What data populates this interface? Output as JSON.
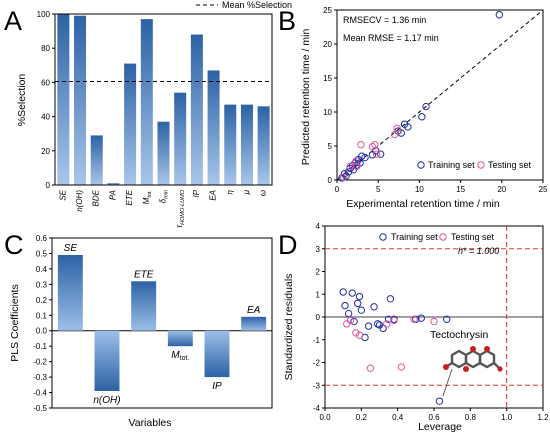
{
  "figure": {
    "panels": {
      "A": {
        "letter": "A",
        "legend": "Mean %Selection"
      },
      "B": {
        "letter": "B",
        "stat1": "RMSECV = 1.36 min",
        "stat2": "Mean RMSE = 1.17 min",
        "legend_train": "Training set",
        "legend_test": "Testing set"
      },
      "C": {
        "letter": "C"
      },
      "D": {
        "letter": "D",
        "hstar": "h* = 1.000",
        "legend_train": "Training set",
        "legend_test": "Testing set",
        "molecule_label": "Tectochrysin"
      }
    }
  },
  "colors": {
    "bar_top": "#2c62a4",
    "bar_bottom": "#a8c6ea",
    "training_marker": "#1f2fa0",
    "testing_marker": "#e0559a",
    "red_dashed": "#e03a2e"
  },
  "chart_data": [
    {
      "panel": "A",
      "type": "bar",
      "ylabel": "%Selection",
      "ylim": [
        0,
        100
      ],
      "yticks": [
        0,
        20,
        40,
        60,
        80,
        100
      ],
      "categories": [
        "SE",
        "n(OH)",
        "BDE",
        "PA",
        "ETE",
        "M_tot.",
        "δ_min",
        "τ_HOMO-LUMO",
        "IP",
        "EA",
        "η",
        "μ",
        "ω"
      ],
      "values": [
        100,
        99,
        29,
        1,
        71,
        97,
        37,
        54,
        88,
        67,
        47,
        47,
        46
      ],
      "reference_line": {
        "name": "Mean %Selection",
        "value": 60.5,
        "style": "dashed"
      },
      "grid": false
    },
    {
      "panel": "B",
      "type": "scatter",
      "xlabel": "Experimental retention time / min",
      "ylabel": "Predicted retention time / min",
      "xlim": [
        0,
        25
      ],
      "ylim": [
        0,
        25
      ],
      "xticks": [
        0,
        5,
        10,
        15,
        20,
        25
      ],
      "yticks": [
        0,
        5,
        10,
        15,
        20,
        25
      ],
      "identity_line": true,
      "series": [
        {
          "name": "Training set",
          "points": [
            [
              0.6,
              0.3
            ],
            [
              0.9,
              0.9
            ],
            [
              1.1,
              0.6
            ],
            [
              1.4,
              1.2
            ],
            [
              1.6,
              1.7
            ],
            [
              1.9,
              2.1
            ],
            [
              2.0,
              1.5
            ],
            [
              2.2,
              2.5
            ],
            [
              2.4,
              2.2
            ],
            [
              2.6,
              3.0
            ],
            [
              2.8,
              2.5
            ],
            [
              3.0,
              3.5
            ],
            [
              3.4,
              3.3
            ],
            [
              4.3,
              3.7
            ],
            [
              4.7,
              4.3
            ],
            [
              5.3,
              3.8
            ],
            [
              7.4,
              7.2
            ],
            [
              7.8,
              6.9
            ],
            [
              8.2,
              8.2
            ],
            [
              8.6,
              7.8
            ],
            [
              10.3,
              9.3
            ],
            [
              10.8,
              10.8
            ],
            [
              19.7,
              24.3
            ]
          ]
        },
        {
          "name": "Testing set",
          "points": [
            [
              0.8,
              0.4
            ],
            [
              1.6,
              2.0
            ],
            [
              2.3,
              2.8
            ],
            [
              2.4,
              2.0
            ],
            [
              2.9,
              5.2
            ],
            [
              4.3,
              4.9
            ],
            [
              4.6,
              5.2
            ],
            [
              4.8,
              3.8
            ],
            [
              7.0,
              6.7
            ],
            [
              7.3,
              7.6
            ]
          ]
        }
      ],
      "grid": false
    },
    {
      "panel": "C",
      "type": "bar",
      "xlabel": "Variables",
      "ylabel": "PLS Coefficients",
      "ylim": [
        -0.5,
        0.6
      ],
      "yticks": [
        -0.5,
        -0.4,
        -0.3,
        -0.2,
        -0.1,
        0.0,
        0.1,
        0.2,
        0.3,
        0.4,
        0.5,
        0.6
      ],
      "categories": [
        "SE",
        "n(OH)",
        "ETE",
        "M_tot.",
        "IP",
        "EA"
      ],
      "values": [
        0.49,
        -0.39,
        0.32,
        -0.1,
        -0.3,
        0.09
      ],
      "grid": false
    },
    {
      "panel": "D",
      "type": "scatter",
      "xlabel": "Leverage",
      "ylabel": "Standardized residuals",
      "xlim": [
        0,
        1.2
      ],
      "ylim": [
        -4,
        4
      ],
      "xticks": [
        0.0,
        0.2,
        0.4,
        0.6,
        0.8,
        1.0,
        1.2
      ],
      "yticks": [
        -4,
        -3,
        -2,
        -1,
        0,
        1,
        2,
        3,
        4
      ],
      "reference_lines": {
        "y": [
          3,
          -3
        ],
        "x": [
          1.0
        ]
      },
      "series": [
        {
          "name": "Training set",
          "points": [
            [
              0.1,
              1.1
            ],
            [
              0.11,
              0.5
            ],
            [
              0.13,
              0.15
            ],
            [
              0.15,
              1.05
            ],
            [
              0.16,
              -0.2
            ],
            [
              0.18,
              0.6
            ],
            [
              0.19,
              0.9
            ],
            [
              0.2,
              0.3
            ],
            [
              0.22,
              -0.9
            ],
            [
              0.24,
              -0.4
            ],
            [
              0.27,
              0.45
            ],
            [
              0.29,
              -0.3
            ],
            [
              0.3,
              -0.35
            ],
            [
              0.32,
              -0.5
            ],
            [
              0.35,
              -0.1
            ],
            [
              0.36,
              0.8
            ],
            [
              0.38,
              -0.1
            ],
            [
              0.5,
              -0.1
            ],
            [
              0.53,
              -0.05
            ],
            [
              0.63,
              -3.7
            ],
            [
              0.67,
              -0.1
            ]
          ]
        },
        {
          "name": "Testing set",
          "points": [
            [
              0.12,
              -0.3
            ],
            [
              0.14,
              -0.15
            ],
            [
              0.17,
              -0.7
            ],
            [
              0.19,
              -0.8
            ],
            [
              0.25,
              -2.25
            ],
            [
              0.34,
              -0.3
            ],
            [
              0.38,
              -0.15
            ],
            [
              0.42,
              -2.2
            ],
            [
              0.49,
              -0.1
            ],
            [
              0.6,
              -0.2
            ]
          ]
        }
      ],
      "annotation": {
        "label": "Tectochrysin",
        "point": [
          0.63,
          -3.7
        ]
      },
      "grid": false
    }
  ]
}
